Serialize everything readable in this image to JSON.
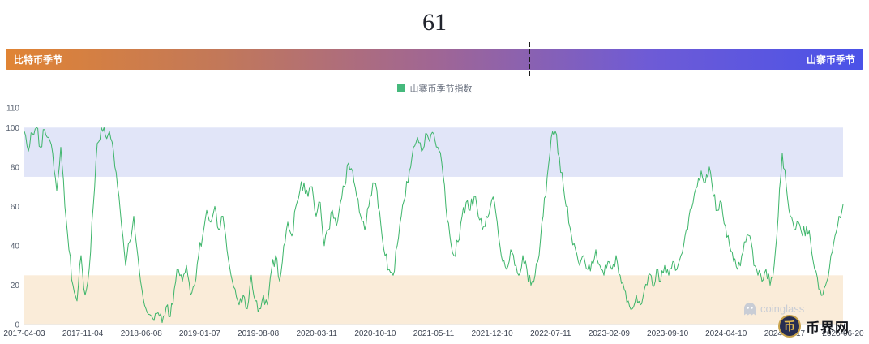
{
  "page": {
    "title_value": "61"
  },
  "season_bar": {
    "left_label": "比特币季节",
    "right_label": "山寨币季节",
    "marker_percent": 61,
    "gradient_stops": [
      "#E08434",
      "#C27859",
      "#A06694",
      "#6E5BD6",
      "#4A52E8"
    ]
  },
  "legend": {
    "label": "山寨币季节指数",
    "swatch_color": "#45B97C"
  },
  "chart_data": {
    "type": "line",
    "title": "山寨币季节指数",
    "current_value": 61,
    "xlabel": "",
    "ylabel": "",
    "ylim": [
      0,
      110
    ],
    "y_ticks": [
      0,
      20,
      40,
      60,
      80,
      100,
      110
    ],
    "grid": false,
    "legend_position": "top",
    "x_range": [
      "2017-04-03",
      "2025-06-20"
    ],
    "x_tick_labels": [
      "2017-04-03",
      "2017-11-04",
      "2018-06-08",
      "2019-01-07",
      "2019-08-08",
      "2020-03-11",
      "2020-10-10",
      "2021-05-11",
      "2021-12-10",
      "2022-07-11",
      "2023-02-09",
      "2023-09-10",
      "2024-04-10",
      "2024-11-17",
      "2025-06-20"
    ],
    "bands": [
      {
        "name": "altcoin-season-zone",
        "from": 75,
        "to": 100,
        "color": "#E1E5F8"
      },
      {
        "name": "bitcoin-season-zone",
        "from": 0,
        "to": 25,
        "color": "#FAECD9"
      }
    ],
    "line_color": "#3DB56A",
    "values": [
      98,
      88,
      97,
      100,
      90,
      99,
      95,
      87,
      68,
      90,
      60,
      38,
      20,
      12,
      35,
      15,
      28,
      60,
      92,
      100,
      96,
      98,
      88,
      70,
      50,
      30,
      42,
      55,
      35,
      18,
      8,
      5,
      2,
      6,
      1,
      9,
      4,
      18,
      28,
      22,
      30,
      15,
      20,
      35,
      45,
      58,
      52,
      60,
      48,
      55,
      38,
      25,
      18,
      10,
      15,
      8,
      25,
      12,
      8,
      15,
      10,
      28,
      35,
      22,
      40,
      52,
      45,
      60,
      68,
      72,
      65,
      70,
      55,
      62,
      40,
      48,
      58,
      50,
      62,
      70,
      82,
      78,
      65,
      55,
      48,
      60,
      72,
      68,
      50,
      35,
      28,
      25,
      40,
      55,
      65,
      78,
      90,
      95,
      88,
      97,
      93,
      97,
      90,
      82,
      60,
      45,
      35,
      42,
      55,
      62,
      58,
      65,
      55,
      48,
      55,
      60,
      62,
      45,
      32,
      28,
      38,
      30,
      25,
      35,
      28,
      20,
      25,
      35,
      55,
      75,
      95,
      98,
      85,
      70,
      60,
      45,
      38,
      30,
      35,
      28,
      32,
      38,
      30,
      25,
      32,
      28,
      35,
      25,
      18,
      12,
      8,
      15,
      10,
      18,
      25,
      20,
      28,
      22,
      30,
      25,
      32,
      28,
      35,
      45,
      55,
      62,
      70,
      78,
      72,
      80,
      65,
      58,
      62,
      50,
      40,
      32,
      28,
      35,
      42,
      45,
      30,
      25,
      22,
      28,
      20,
      30,
      55,
      87,
      70,
      55,
      48,
      52,
      45,
      50,
      42,
      28,
      18,
      15,
      22,
      35,
      45,
      55,
      61
    ]
  },
  "watermark": {
    "label": "coinglass",
    "icon": "ghost-icon"
  },
  "brand": {
    "label": "币界网",
    "logo_char": "币"
  }
}
